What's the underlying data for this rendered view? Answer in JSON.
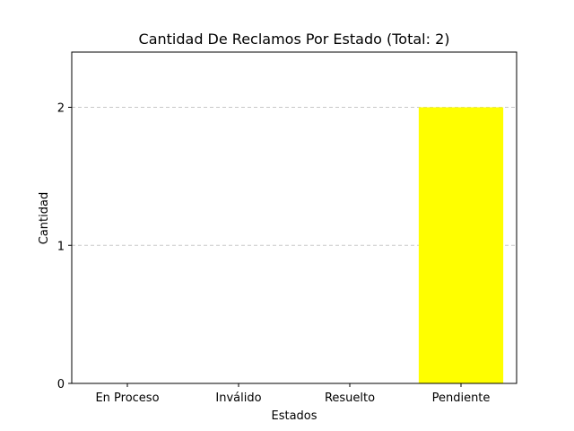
{
  "chart_data": {
    "type": "bar",
    "title": "Cantidad De Reclamos Por Estado (Total: 2)",
    "xlabel": "Estados",
    "ylabel": "Cantidad",
    "categories": [
      "En Proceso",
      "Inválido",
      "Resuelto",
      "Pendiente"
    ],
    "values": [
      0,
      0,
      0,
      2
    ],
    "colors": [
      "#0000ff",
      "#ff0000",
      "#008000",
      "#ffff00"
    ],
    "yticks": [
      0,
      1,
      2
    ],
    "ylim": [
      0,
      2.4
    ],
    "grid": "y-dashed",
    "grid_color": "#c8c8c8"
  }
}
